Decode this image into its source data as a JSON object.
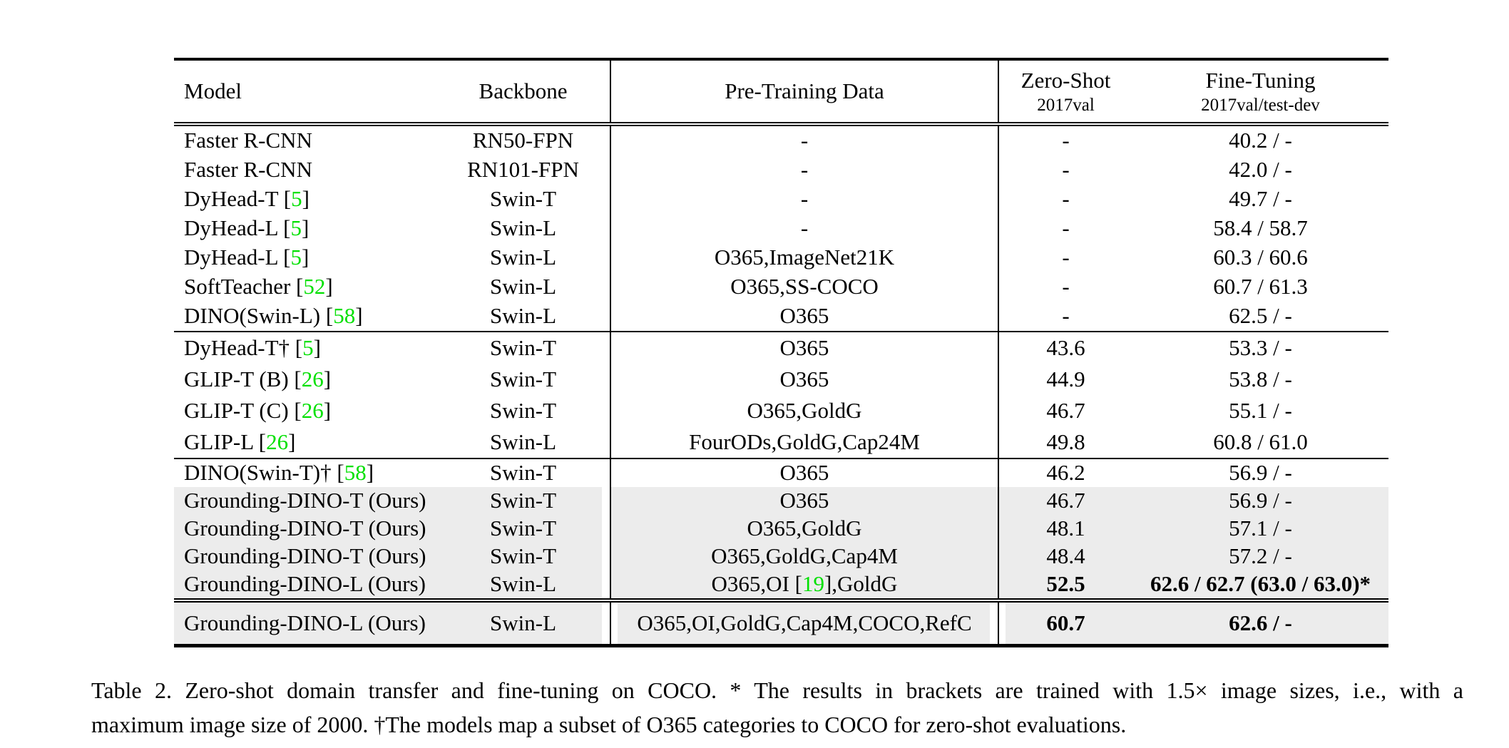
{
  "colors": {
    "citation": "#00e000",
    "highlight": "#ececec"
  },
  "table": {
    "header": {
      "model": "Model",
      "backbone": "Backbone",
      "pretrain": "Pre-Training Data",
      "zeroshot_title": "Zero-Shot",
      "zeroshot_sub": "2017val",
      "finetune_title": "Fine-Tuning",
      "finetune_sub": "2017val/test-dev"
    },
    "groups": [
      {
        "rows": [
          {
            "model": "Faster R-CNN",
            "backbone": "RN50-FPN",
            "pretrain": "-",
            "zeroshot": "-",
            "finetune": "40.2 / -"
          },
          {
            "model": "Faster R-CNN",
            "backbone": "RN101-FPN",
            "pretrain": "-",
            "zeroshot": "-",
            "finetune": "42.0 / -"
          },
          {
            "model": "DyHead-T [5]",
            "backbone": "Swin-T",
            "pretrain": "-",
            "zeroshot": "-",
            "finetune": "49.7 / -"
          },
          {
            "model": "DyHead-L [5]",
            "backbone": "Swin-L",
            "pretrain": "-",
            "zeroshot": "-",
            "finetune": "58.4 / 58.7"
          },
          {
            "model": "DyHead-L [5]",
            "backbone": "Swin-L",
            "pretrain": "O365,ImageNet21K",
            "zeroshot": "-",
            "finetune": "60.3 / 60.6"
          },
          {
            "model": "SoftTeacher [52]",
            "backbone": "Swin-L",
            "pretrain": "O365,SS-COCO",
            "zeroshot": "-",
            "finetune": "60.7 / 61.3"
          },
          {
            "model": "DINO(Swin-L) [58]",
            "backbone": "Swin-L",
            "pretrain": "O365",
            "zeroshot": "-",
            "finetune": "62.5 / -"
          }
        ]
      },
      {
        "rows": [
          {
            "model": "DyHead-T† [5]",
            "backbone": "Swin-T",
            "pretrain": "O365",
            "zeroshot": "43.6",
            "finetune": "53.3 / -"
          },
          {
            "model": "GLIP-T (B) [26]",
            "backbone": "Swin-T",
            "pretrain": "O365",
            "zeroshot": "44.9",
            "finetune": "53.8 / -"
          },
          {
            "model": "GLIP-T (C) [26]",
            "backbone": "Swin-T",
            "pretrain": "O365,GoldG",
            "zeroshot": "46.7",
            "finetune": "55.1 / -"
          },
          {
            "model": "GLIP-L [26]",
            "backbone": "Swin-L",
            "pretrain": "FourODs,GoldG,Cap24M",
            "zeroshot": "49.8",
            "finetune": "60.8 / 61.0"
          }
        ]
      },
      {
        "rows": [
          {
            "model": "DINO(Swin-T)† [58]",
            "backbone": "Swin-T",
            "pretrain": "O365",
            "zeroshot": "46.2",
            "finetune": "56.9 / -"
          },
          {
            "model": "Grounding-DINO-T (Ours)",
            "backbone": "Swin-T",
            "pretrain": "O365",
            "zeroshot": "46.7",
            "finetune": "56.9 / -",
            "highlight": true
          },
          {
            "model": "Grounding-DINO-T (Ours)",
            "backbone": "Swin-T",
            "pretrain": "O365,GoldG",
            "zeroshot": "48.1",
            "finetune": "57.1 / -",
            "highlight": true
          },
          {
            "model": "Grounding-DINO-T (Ours)",
            "backbone": "Swin-T",
            "pretrain": "O365,GoldG,Cap4M",
            "zeroshot": "48.4",
            "finetune": "57.2 / -",
            "highlight": true
          },
          {
            "model": "Grounding-DINO-L (Ours)",
            "backbone": "Swin-L",
            "pretrain": "O365,OI [19],GoldG",
            "zeroshot": "52.5",
            "finetune": "62.6 / 62.7 (63.0 / 63.0)*",
            "highlight": true,
            "bold_zeroshot": true,
            "bold_finetune": true
          }
        ]
      },
      {
        "rows": [
          {
            "model": "Grounding-DINO-L (Ours)",
            "backbone": "Swin-L",
            "pretrain": "O365,OI,GoldG,Cap4M,COCO,RefC",
            "zeroshot": "60.7",
            "finetune": "62.6 / -",
            "highlight": true,
            "bold_zeroshot": true,
            "bold_finetune": true
          }
        ]
      }
    ]
  },
  "figure": {
    "caption_line1": "Table 2.  Zero-shot domain transfer and fine-tuning on COCO. * The results in brackets are trained with 1.5× image sizes, i.e., with a",
    "caption_line2": "maximum image size of 2000. †The models map a subset of O365 categories to COCO for zero-shot evaluations."
  }
}
